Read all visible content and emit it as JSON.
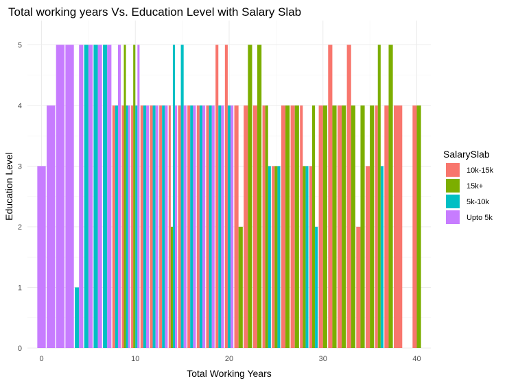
{
  "chart_data": {
    "type": "bar",
    "title": "Total working years Vs. Education Level with Salary Slab",
    "xlabel": "Total Working Years",
    "ylabel": "Education Level",
    "xlim": [
      -1.5,
      41.5
    ],
    "ylim": [
      0,
      5.4
    ],
    "x_ticks": [
      0,
      10,
      20,
      30,
      40
    ],
    "y_ticks": [
      0,
      1,
      2,
      3,
      4,
      5
    ],
    "grid": true,
    "position": "dodge",
    "legend": {
      "title": "SalarySlab",
      "placement": "right",
      "order": [
        "10k-15k",
        "15k+",
        "5k-10k",
        "Upto 5k"
      ]
    },
    "series": [
      {
        "name": "10k-15k",
        "color": "#F8766D",
        "points": [
          [
            8,
            4
          ],
          [
            9,
            4
          ],
          [
            10,
            4
          ],
          [
            11,
            4
          ],
          [
            12,
            4
          ],
          [
            13,
            4
          ],
          [
            14,
            4
          ],
          [
            15,
            4
          ],
          [
            16,
            4
          ],
          [
            17,
            4
          ],
          [
            18,
            4
          ],
          [
            19,
            5
          ],
          [
            20,
            5
          ],
          [
            21,
            4
          ],
          [
            22,
            4
          ],
          [
            23,
            4
          ],
          [
            24,
            4
          ],
          [
            25,
            3
          ],
          [
            26,
            4
          ],
          [
            27,
            4
          ],
          [
            28,
            4
          ],
          [
            29,
            3
          ],
          [
            30,
            4
          ],
          [
            31,
            5
          ],
          [
            32,
            4
          ],
          [
            33,
            5
          ],
          [
            34,
            2
          ],
          [
            35,
            3
          ],
          [
            36,
            4
          ],
          [
            37,
            4
          ],
          [
            38,
            4
          ],
          [
            40,
            4
          ]
        ]
      },
      {
        "name": "15k+",
        "color": "#7CAE00",
        "points": [
          [
            9,
            5
          ],
          [
            10,
            5
          ],
          [
            14,
            2
          ],
          [
            21,
            2
          ],
          [
            22,
            5
          ],
          [
            23,
            5
          ],
          [
            24,
            4
          ],
          [
            25,
            3
          ],
          [
            26,
            4
          ],
          [
            27,
            4
          ],
          [
            28,
            3
          ],
          [
            29,
            4
          ],
          [
            30,
            4
          ],
          [
            31,
            4
          ],
          [
            32,
            4
          ],
          [
            33,
            4
          ],
          [
            34,
            4
          ],
          [
            35,
            4
          ],
          [
            36,
            5
          ],
          [
            37,
            5
          ],
          [
            40,
            4
          ]
        ]
      },
      {
        "name": "5k-10k",
        "color": "#00BFC4",
        "points": [
          [
            4,
            1
          ],
          [
            5,
            5
          ],
          [
            6,
            5
          ],
          [
            7,
            5
          ],
          [
            8,
            4
          ],
          [
            9,
            4
          ],
          [
            10,
            4
          ],
          [
            11,
            4
          ],
          [
            12,
            4
          ],
          [
            13,
            4
          ],
          [
            14,
            5
          ],
          [
            15,
            5
          ],
          [
            16,
            4
          ],
          [
            17,
            4
          ],
          [
            18,
            4
          ],
          [
            19,
            4
          ],
          [
            20,
            4
          ],
          [
            24,
            3
          ],
          [
            25,
            3
          ],
          [
            28,
            3
          ],
          [
            29,
            2
          ],
          [
            36,
            3
          ]
        ]
      },
      {
        "name": "Upto 5k",
        "color": "#C77CFF",
        "points": [
          [
            0,
            3
          ],
          [
            1,
            4
          ],
          [
            2,
            5
          ],
          [
            3,
            5
          ],
          [
            4,
            5
          ],
          [
            5,
            5
          ],
          [
            6,
            5
          ],
          [
            7,
            5
          ],
          [
            8,
            5
          ],
          [
            9,
            4
          ],
          [
            10,
            5
          ],
          [
            11,
            4
          ],
          [
            12,
            4
          ],
          [
            13,
            4
          ],
          [
            14,
            4
          ],
          [
            15,
            4
          ],
          [
            16,
            4
          ],
          [
            17,
            4
          ],
          [
            18,
            4
          ],
          [
            19,
            4
          ],
          [
            20,
            4
          ]
        ]
      }
    ]
  }
}
